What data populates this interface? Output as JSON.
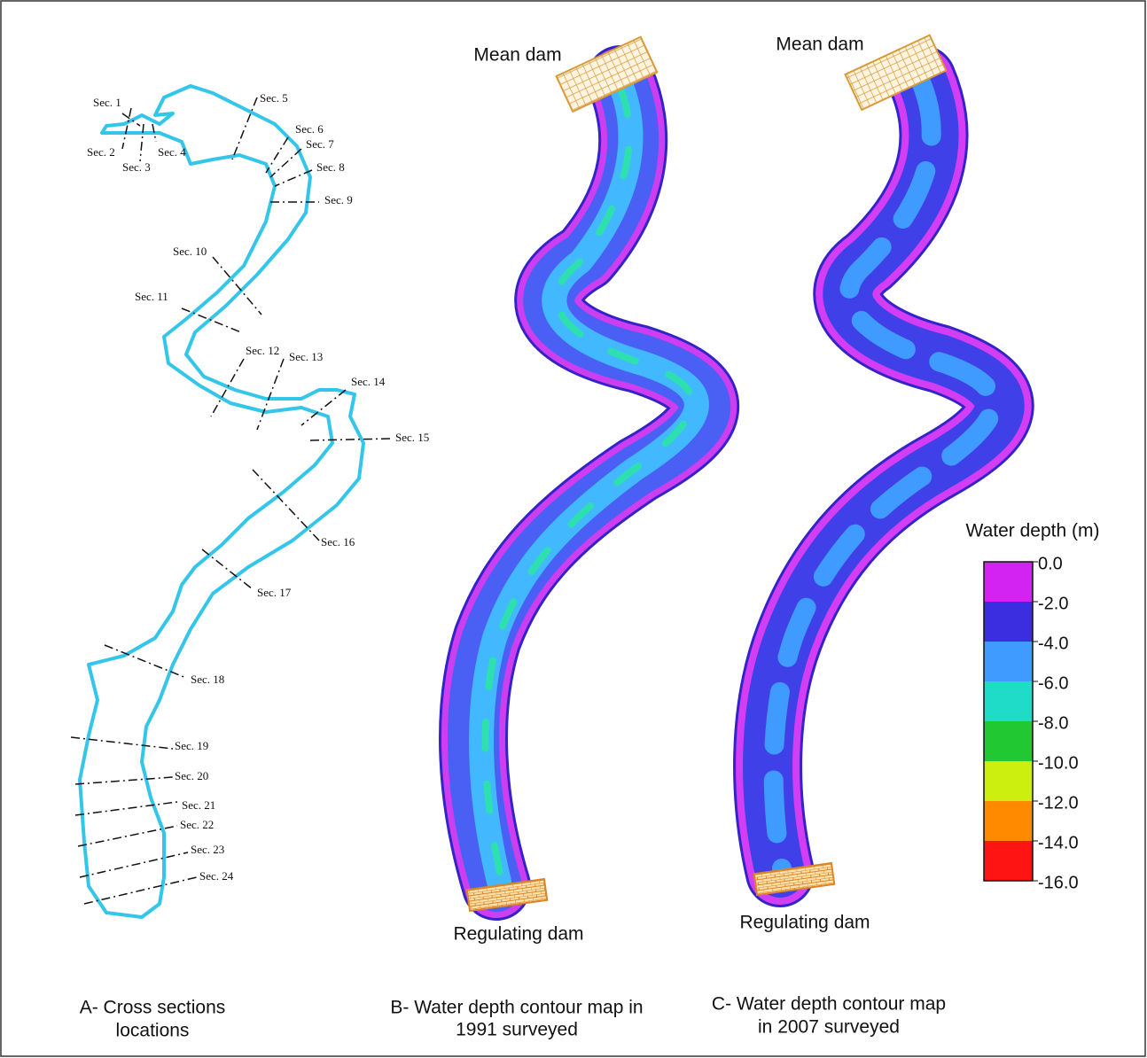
{
  "panel_a": {
    "sections": [
      "Sec. 1",
      "Sec. 2",
      "Sec. 3",
      "Sec. 4",
      "Sec. 5",
      "Sec. 6",
      "Sec. 7",
      "Sec. 8",
      "Sec. 9",
      "Sec. 10",
      "Sec. 11",
      "Sec. 12",
      "Sec. 13",
      "Sec. 14",
      "Sec. 15",
      "Sec. 16",
      "Sec. 17",
      "Sec. 18",
      "Sec. 19",
      "Sec. 20",
      "Sec. 21",
      "Sec. 22",
      "Sec. 23",
      "Sec. 24"
    ],
    "caption": [
      "A- Cross sections",
      "locations"
    ]
  },
  "panel_b": {
    "top_label": "Mean dam",
    "bottom_label": "Regulating dam",
    "caption": [
      "B- Water depth contour map in",
      "1991 surveyed"
    ]
  },
  "panel_c": {
    "top_label": "Mean dam",
    "bottom_label": "Regulating dam",
    "caption": [
      "C- Water depth contour map",
      "in 2007 surveyed"
    ]
  },
  "legend": {
    "title": "Water depth (m)",
    "ticks": [
      {
        "value": 0,
        "label": "0.0"
      },
      {
        "value": -2,
        "label": "-2.0"
      },
      {
        "value": -4,
        "label": "-4.0"
      },
      {
        "value": -6,
        "label": "-6.0"
      },
      {
        "value": -8,
        "label": "-8.0"
      },
      {
        "value": -10,
        "label": "-10.0"
      },
      {
        "value": -12,
        "label": "-12.0"
      },
      {
        "value": -14,
        "label": "-14.0"
      },
      {
        "value": -16,
        "label": "-16.0"
      }
    ],
    "colors": [
      "#d323f2",
      "#3a2ee0",
      "#3f9bff",
      "#1fdcc8",
      "#22c832",
      "#cdef10",
      "#ff8a00",
      "#ff1414"
    ]
  }
}
